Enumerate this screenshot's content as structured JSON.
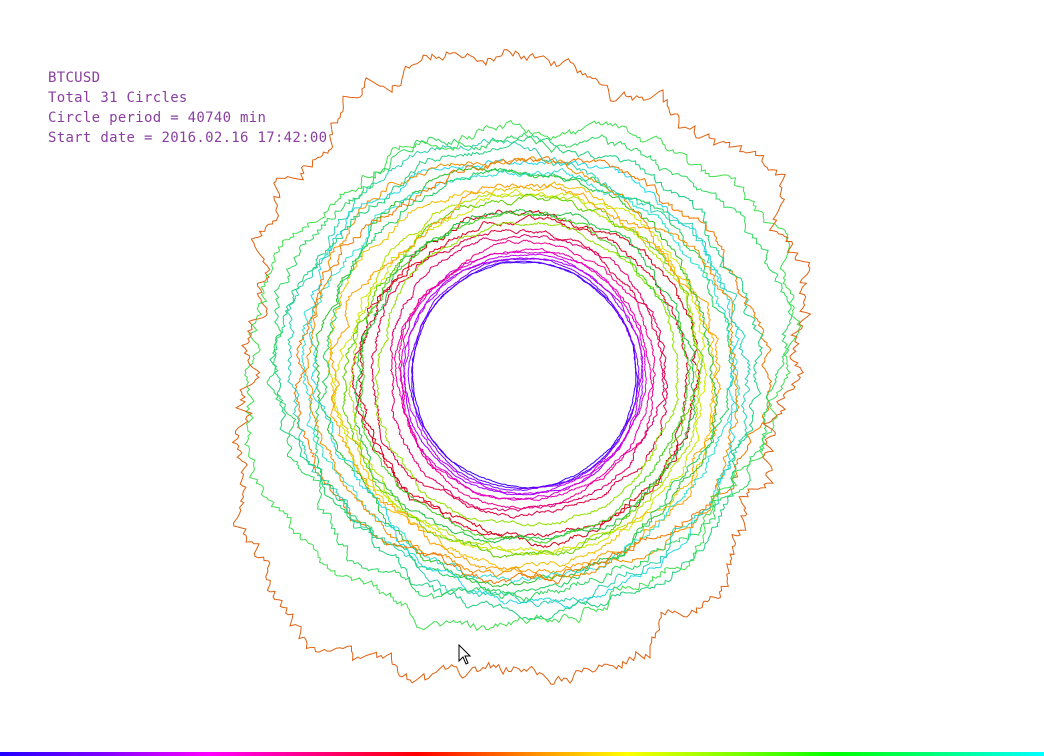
{
  "info": {
    "symbol": "BTCUSD",
    "total": "Total 31 Circles",
    "period": "Circle period = 40740 min",
    "start": "Start date = 2016.02.16 17:42:00"
  },
  "chart_data": {
    "type": "polar-line",
    "title": "BTCUSD",
    "circle_count": 31,
    "circle_period_min": 40740,
    "start_date": "2016.02.16 17:42:00",
    "color_order": "violet to red to orange to yellow to green to cyan (oldest to newest)",
    "series": [
      {
        "color": "#3a00ff",
        "mean_radius": 112,
        "roughness": 0.4
      },
      {
        "color": "#5a00ff",
        "mean_radius": 114,
        "roughness": 0.4
      },
      {
        "color": "#8000ff",
        "mean_radius": 115,
        "roughness": 0.5
      },
      {
        "color": "#a000ff",
        "mean_radius": 117,
        "roughness": 0.6
      },
      {
        "color": "#c000f0",
        "mean_radius": 119,
        "roughness": 0.7
      },
      {
        "color": "#d800d0",
        "mean_radius": 122,
        "roughness": 0.8
      },
      {
        "color": "#e800b0",
        "mean_radius": 126,
        "roughness": 1.0
      },
      {
        "color": "#f00090",
        "mean_radius": 133,
        "roughness": 1.2
      },
      {
        "color": "#e0006a",
        "mean_radius": 140,
        "roughness": 1.4
      },
      {
        "color": "#e00040",
        "mean_radius": 147,
        "roughness": 1.6
      },
      {
        "color": "#e00020",
        "mean_radius": 158,
        "roughness": 2.0
      },
      {
        "color": "#d00010",
        "mean_radius": 165,
        "roughness": 2.2
      },
      {
        "color": "#90e000",
        "mean_radius": 152,
        "roughness": 1.6
      },
      {
        "color": "#40d020",
        "mean_radius": 160,
        "roughness": 1.8
      },
      {
        "color": "#20c040",
        "mean_radius": 168,
        "roughness": 2.0
      },
      {
        "color": "#b0e000",
        "mean_radius": 175,
        "roughness": 2.0
      },
      {
        "color": "#d0e800",
        "mean_radius": 182,
        "roughness": 2.2
      },
      {
        "color": "#60d000",
        "mean_radius": 176,
        "roughness": 2.2
      },
      {
        "color": "#f0c000",
        "mean_radius": 188,
        "roughness": 2.4
      },
      {
        "color": "#ffa000",
        "mean_radius": 193,
        "roughness": 2.6
      },
      {
        "color": "#30c030",
        "mean_radius": 196,
        "roughness": 2.6
      },
      {
        "color": "#20d060",
        "mean_radius": 201,
        "roughness": 2.8
      },
      {
        "color": "#30e0d0",
        "mean_radius": 206,
        "roughness": 2.8
      },
      {
        "color": "#20d8e8",
        "mean_radius": 213,
        "roughness": 3.0
      },
      {
        "color": "#f09000",
        "mean_radius": 217,
        "roughness": 3.0
      },
      {
        "color": "#f07800",
        "mean_radius": 224,
        "roughness": 3.4
      },
      {
        "color": "#30d0b0",
        "mean_radius": 232,
        "roughness": 3.6
      },
      {
        "color": "#20d080",
        "mean_radius": 240,
        "roughness": 3.8
      },
      {
        "color": "#30d860",
        "mean_radius": 248,
        "roughness": 4.4
      },
      {
        "color": "#40e050",
        "mean_radius": 258,
        "roughness": 5.0
      },
      {
        "color": "#e06010",
        "mean_radius": 300,
        "roughness": 7.5
      }
    ]
  }
}
